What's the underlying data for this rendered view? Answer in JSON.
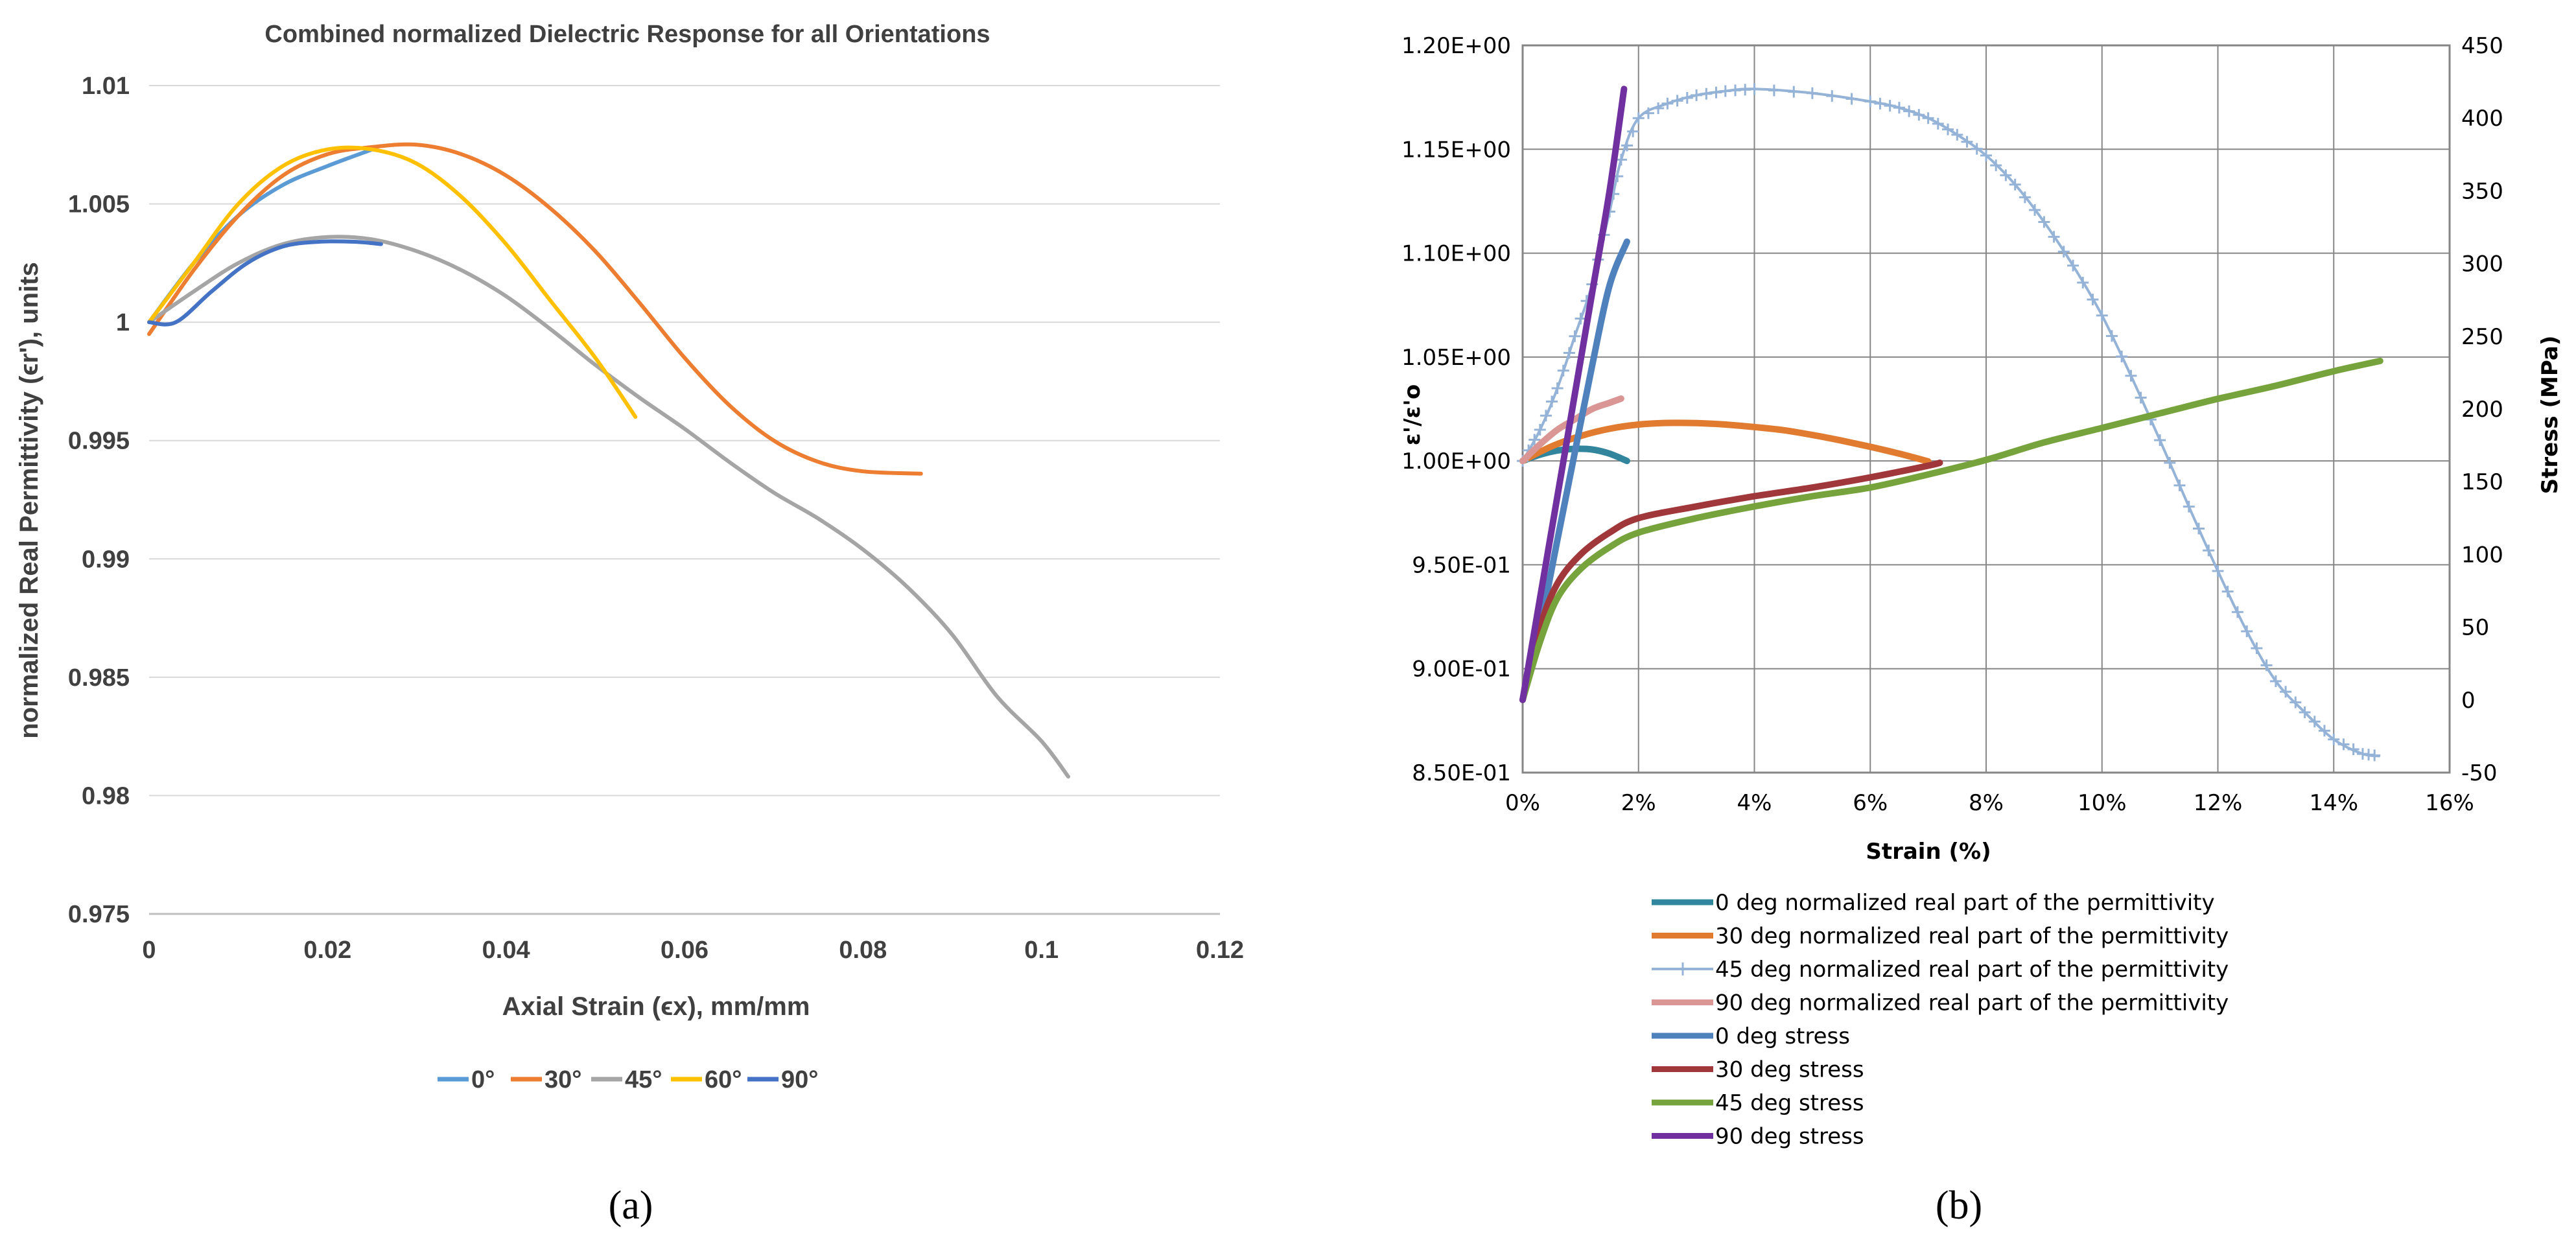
{
  "chart_data": [
    {
      "type": "line",
      "panel_label": "a",
      "title": "Combined normalized Dielectric Response for all Orientations",
      "xlabel": "Axial Strain (ϵx), mm/mm",
      "ylabel": "normalized Real Permittivity (ϵr'), units",
      "xlim": [
        0,
        0.12
      ],
      "ylim": [
        0.975,
        1.01
      ],
      "x_ticks": [
        "0",
        "0.02",
        "0.04",
        "0.06",
        "0.08",
        "0.1",
        "0.12"
      ],
      "y_ticks": [
        "0.975",
        "0.98",
        "0.985",
        "0.99",
        "0.995",
        "1",
        "1.005",
        "1.01"
      ],
      "grid": "horizontal",
      "legend_position": "bottom",
      "series": [
        {
          "name": "0°",
          "color": "#5B9BD5",
          "points": [
            [
              0,
              1.0
            ],
            [
              0.005,
              1.0025
            ],
            [
              0.01,
              1.0045
            ],
            [
              0.015,
              1.0058
            ],
            [
              0.02,
              1.0066
            ],
            [
              0.025,
              1.0073
            ]
          ]
        },
        {
          "name": "30°",
          "color": "#ED7D31",
          "points": [
            [
              0,
              0.9995
            ],
            [
              0.005,
              1.0022
            ],
            [
              0.01,
              1.0045
            ],
            [
              0.015,
              1.0062
            ],
            [
              0.02,
              1.0071
            ],
            [
              0.025,
              1.0074
            ],
            [
              0.03,
              1.0075
            ],
            [
              0.035,
              1.0071
            ],
            [
              0.04,
              1.0062
            ],
            [
              0.045,
              1.0048
            ],
            [
              0.05,
              1.003
            ],
            [
              0.055,
              1.0008
            ],
            [
              0.06,
              0.9985
            ],
            [
              0.065,
              0.9965
            ],
            [
              0.07,
              0.995
            ],
            [
              0.075,
              0.9941
            ],
            [
              0.08,
              0.9937
            ],
            [
              0.0865,
              0.9936
            ]
          ]
        },
        {
          "name": "45°",
          "color": "#A5A5A5",
          "points": [
            [
              0,
              1.0
            ],
            [
              0.005,
              1.0013
            ],
            [
              0.01,
              1.0025
            ],
            [
              0.015,
              1.0033
            ],
            [
              0.02,
              1.0036
            ],
            [
              0.025,
              1.0035
            ],
            [
              0.03,
              1.003
            ],
            [
              0.035,
              1.0022
            ],
            [
              0.04,
              1.0011
            ],
            [
              0.045,
              0.9997
            ],
            [
              0.05,
              0.9982
            ],
            [
              0.055,
              0.9968
            ],
            [
              0.06,
              0.9955
            ],
            [
              0.065,
              0.9941
            ],
            [
              0.07,
              0.9928
            ],
            [
              0.075,
              0.9917
            ],
            [
              0.08,
              0.9904
            ],
            [
              0.085,
              0.9888
            ],
            [
              0.09,
              0.9868
            ],
            [
              0.095,
              0.9842
            ],
            [
              0.1,
              0.9823
            ],
            [
              0.103,
              0.9808
            ]
          ]
        },
        {
          "name": "60°",
          "color": "#FFC000",
          "points": [
            [
              0,
              1.0
            ],
            [
              0.005,
              1.0025
            ],
            [
              0.01,
              1.005
            ],
            [
              0.015,
              1.0066
            ],
            [
              0.02,
              1.0073
            ],
            [
              0.025,
              1.0073
            ],
            [
              0.03,
              1.0067
            ],
            [
              0.035,
              1.0053
            ],
            [
              0.04,
              1.0033
            ],
            [
              0.045,
              1.0009
            ],
            [
              0.05,
              0.9985
            ],
            [
              0.0545,
              0.996
            ]
          ]
        },
        {
          "name": "90°",
          "color": "#4472C4",
          "points": [
            [
              0,
              1.0
            ],
            [
              0.003,
              1.0
            ],
            [
              0.007,
              1.0013
            ],
            [
              0.011,
              1.0025
            ],
            [
              0.015,
              1.0032
            ],
            [
              0.019,
              1.0034
            ],
            [
              0.023,
              1.0034
            ],
            [
              0.026,
              1.0033
            ]
          ]
        }
      ]
    },
    {
      "type": "line",
      "panel_label": "b",
      "xlabel": "Strain (%)",
      "ylabel": "ε'/ε'o",
      "ylabel2": "Stress (MPa)",
      "xlim": [
        0,
        16
      ],
      "ylim": [
        0.85,
        1.2
      ],
      "y2lim": [
        -50,
        450
      ],
      "x_ticks": [
        "0%",
        "2%",
        "4%",
        "6%",
        "8%",
        "10%",
        "12%",
        "14%",
        "16%"
      ],
      "y_ticks": [
        "8.50E-01",
        "9.00E-01",
        "9.50E-01",
        "1.00E+00",
        "1.05E+00",
        "1.10E+00",
        "1.15E+00",
        "1.20E+00"
      ],
      "y2_ticks": [
        "-50",
        "0",
        "50",
        "100",
        "150",
        "200",
        "250",
        "300",
        "350",
        "400",
        "450"
      ],
      "grid": "both",
      "legend_position": "bottom",
      "series": [
        {
          "name": "0 deg normalized real part of the permittivity",
          "axis": "left",
          "color": "#31859C",
          "style": "thick",
          "points": [
            [
              0,
              1.0
            ],
            [
              0.3,
              1.003
            ],
            [
              0.6,
              1.005
            ],
            [
              0.9,
              1.0058
            ],
            [
              1.2,
              1.0055
            ],
            [
              1.5,
              1.0035
            ],
            [
              1.8,
              1.0
            ]
          ]
        },
        {
          "name": "30 deg normalized real part of the permittivity",
          "axis": "left",
          "color": "#E07B2F",
          "style": "thick",
          "points": [
            [
              0,
              1.0
            ],
            [
              0.5,
              1.007
            ],
            [
              1,
              1.012
            ],
            [
              1.5,
              1.0155
            ],
            [
              2,
              1.0175
            ],
            [
              2.5,
              1.0183
            ],
            [
              3,
              1.0182
            ],
            [
              3.5,
              1.0175
            ],
            [
              4,
              1.0163
            ],
            [
              4.5,
              1.0148
            ],
            [
              5,
              1.0125
            ],
            [
              5.5,
              1.0098
            ],
            [
              6,
              1.0068
            ],
            [
              6.5,
              1.0035
            ],
            [
              7,
              0.9998
            ]
          ]
        },
        {
          "name": "45 deg normalized real part of the permittivity",
          "axis": "left",
          "color": "#95B3D7",
          "style": "plus",
          "points": [
            [
              0,
              1.0
            ],
            [
              0.3,
              1.015
            ],
            [
              0.6,
              1.035
            ],
            [
              0.9,
              1.06
            ],
            [
              1.2,
              1.085
            ],
            [
              1.5,
              1.12
            ],
            [
              1.7,
              1.145
            ],
            [
              2,
              1.165
            ],
            [
              2.5,
              1.172
            ],
            [
              3,
              1.176
            ],
            [
              3.5,
              1.178
            ],
            [
              4,
              1.179
            ],
            [
              5,
              1.177
            ],
            [
              6,
              1.173
            ],
            [
              6.5,
              1.17
            ],
            [
              7,
              1.165
            ],
            [
              7.5,
              1.157
            ],
            [
              8,
              1.147
            ],
            [
              8.5,
              1.133
            ],
            [
              9,
              1.115
            ],
            [
              9.5,
              1.094
            ],
            [
              10,
              1.07
            ],
            [
              10.5,
              1.041
            ],
            [
              11,
              1.01
            ],
            [
              11.5,
              0.978
            ],
            [
              12,
              0.947
            ],
            [
              12.5,
              0.918
            ],
            [
              13,
              0.894
            ],
            [
              13.5,
              0.879
            ],
            [
              14,
              0.866
            ],
            [
              14.5,
              0.859
            ],
            [
              14.8,
              0.858
            ]
          ]
        },
        {
          "name": "90 deg normalized real part of the permittivity",
          "axis": "left",
          "color": "#D99694",
          "style": "thick",
          "points": [
            [
              0,
              1.0
            ],
            [
              0.3,
              1.008
            ],
            [
              0.6,
              1.015
            ],
            [
              0.9,
              1.02
            ],
            [
              1.2,
              1.025
            ],
            [
              1.5,
              1.028
            ],
            [
              1.7,
              1.03
            ]
          ]
        },
        {
          "name": "0 deg stress",
          "axis": "right",
          "color": "#4F81BD",
          "style": "thick",
          "points": [
            [
              0,
              0
            ],
            [
              0.3,
              50
            ],
            [
              0.6,
              110
            ],
            [
              0.9,
              170
            ],
            [
              1.2,
              230
            ],
            [
              1.5,
              285
            ],
            [
              1.8,
              315
            ]
          ]
        },
        {
          "name": "30 deg stress",
          "axis": "right",
          "color": "#A0373A",
          "style": "thick",
          "points": [
            [
              0,
              0
            ],
            [
              0.3,
              50
            ],
            [
              0.6,
              80
            ],
            [
              1,
              100
            ],
            [
              1.5,
              115
            ],
            [
              2,
              125
            ],
            [
              3,
              133
            ],
            [
              4,
              140
            ],
            [
              5,
              146
            ],
            [
              6,
              153
            ],
            [
              7,
              161
            ],
            [
              7.2,
              163
            ]
          ]
        },
        {
          "name": "45 deg stress",
          "axis": "right",
          "color": "#77A33C",
          "style": "thick",
          "points": [
            [
              0,
              0
            ],
            [
              0.3,
              40
            ],
            [
              0.6,
              70
            ],
            [
              1,
              90
            ],
            [
              1.5,
              105
            ],
            [
              2,
              115
            ],
            [
              3,
              125
            ],
            [
              4,
              133
            ],
            [
              5,
              140
            ],
            [
              6,
              146
            ],
            [
              7,
              155
            ],
            [
              8,
              165
            ],
            [
              9,
              177
            ],
            [
              10,
              187
            ],
            [
              11,
              197
            ],
            [
              12,
              207
            ],
            [
              13,
              216
            ],
            [
              14,
              226
            ],
            [
              14.8,
              233
            ]
          ]
        },
        {
          "name": "90 deg stress",
          "axis": "right",
          "color": "#7030A0",
          "style": "thick",
          "points": [
            [
              0,
              0
            ],
            [
              0.3,
              70
            ],
            [
              0.6,
              140
            ],
            [
              0.9,
              210
            ],
            [
              1.2,
              280
            ],
            [
              1.5,
              350
            ],
            [
              1.75,
              420
            ]
          ]
        }
      ]
    }
  ],
  "captions": [
    "(a)",
    "(b)"
  ]
}
